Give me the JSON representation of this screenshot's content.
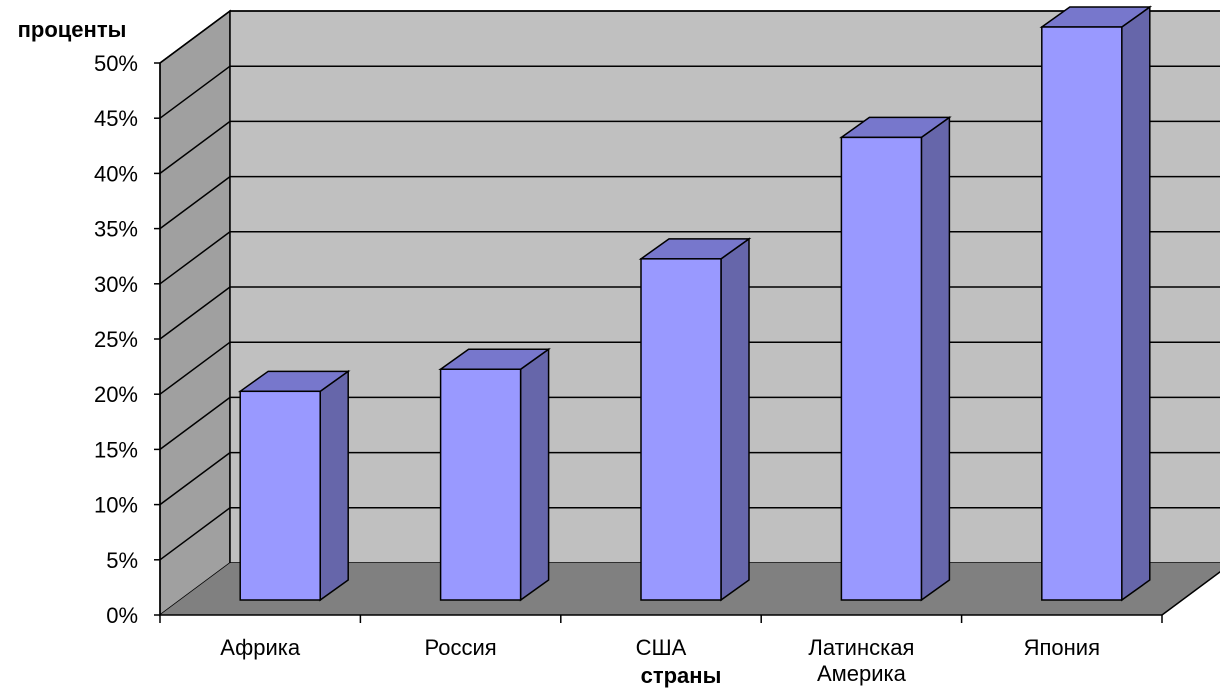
{
  "chart_data": {
    "type": "bar",
    "title": "",
    "xlabel": "страны",
    "ylabel": "проценты",
    "categories": [
      [
        "Африка"
      ],
      [
        "Россия"
      ],
      [
        "США"
      ],
      [
        "Латинская",
        "Америка"
      ],
      [
        "Япония"
      ]
    ],
    "values": [
      17,
      19,
      29,
      40,
      50
    ],
    "ylim": [
      0,
      50
    ],
    "yticks": [
      "0%",
      "5%",
      "10%",
      "15%",
      "20%",
      "25%",
      "30%",
      "35%",
      "40%",
      "45%",
      "50%"
    ],
    "grid": true,
    "style": "3d-column",
    "colors": {
      "bar_front": "#9999ff",
      "bar_side": "#6666aa",
      "bar_top": "#7777cc",
      "wall_back": "#c0c0c0",
      "wall_side": "#a0a0a0",
      "floor": "#808080"
    }
  }
}
